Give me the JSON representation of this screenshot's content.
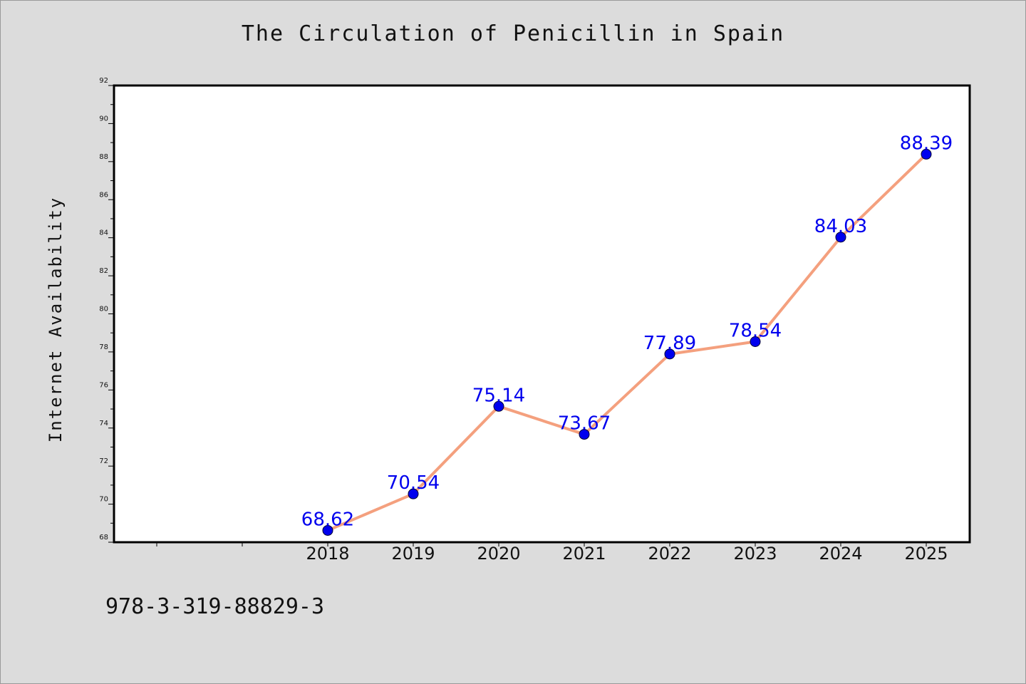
{
  "title": "The Circulation of Penicillin in Spain",
  "footer_text": "978-3-319-88829-3",
  "chart_data": {
    "type": "line",
    "title": "The Circulation of Penicillin in Spain",
    "xlabel": "",
    "ylabel": "Internet Availability",
    "categories": [
      "2018",
      "2019",
      "2020",
      "2021",
      "2022",
      "2023",
      "2024",
      "2025"
    ],
    "series": [
      {
        "values": [
          68.62,
          70.54,
          75.14,
          73.67,
          77.89,
          78.54,
          84.03,
          88.39
        ],
        "labels": [
          "68.62",
          "70.54",
          "75.14",
          "73.67",
          "77.89",
          "78.54",
          "84.03",
          "88.39"
        ],
        "line_color": "#f4a07e",
        "marker_color": "#0000ee"
      }
    ],
    "ylim": [
      68,
      92
    ],
    "yticks": [
      "68",
      "70",
      "72",
      "74",
      "76",
      "78",
      "80",
      "82",
      "84",
      "86",
      "88",
      "90",
      "92"
    ],
    "x_slots_leading_empty": 2,
    "grid": false,
    "legend": "none"
  }
}
